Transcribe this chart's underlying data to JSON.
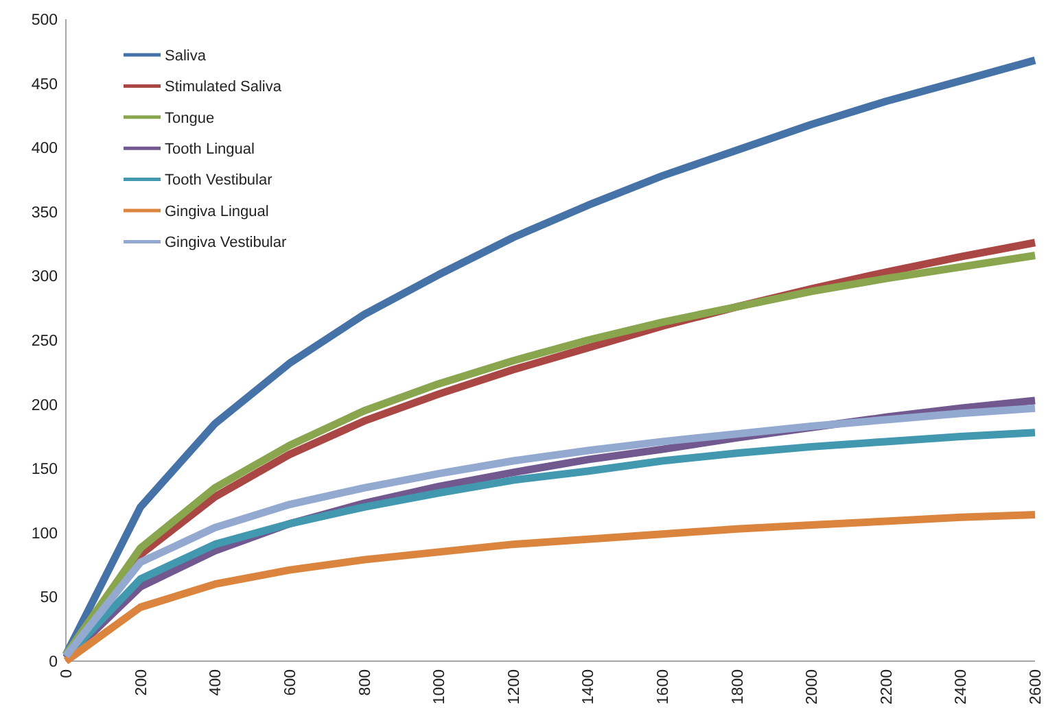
{
  "chart_data": {
    "type": "line",
    "x": [
      0,
      200,
      400,
      600,
      800,
      1000,
      1200,
      1400,
      1600,
      1800,
      2000,
      2200,
      2400,
      2600
    ],
    "xlim": [
      0,
      2600
    ],
    "xticks": [
      0,
      200,
      400,
      600,
      800,
      1000,
      1200,
      1400,
      1600,
      1800,
      2000,
      2200,
      2400,
      2600
    ],
    "ylim": [
      0,
      500
    ],
    "yticks": [
      0,
      50,
      100,
      150,
      200,
      250,
      300,
      350,
      400,
      450,
      500
    ],
    "grid": false,
    "legend": "top left",
    "marker": "none",
    "line_style": "solid",
    "series": [
      {
        "name": "Saliva",
        "color": "#4572a7",
        "values": [
          5,
          120,
          185,
          232,
          270,
          301,
          330,
          355,
          378,
          398,
          418,
          436,
          452,
          468
        ]
      },
      {
        "name": "Stimulated Saliva",
        "color": "#aa4643",
        "values": [
          3,
          83,
          128,
          161,
          187,
          208,
          227,
          244,
          261,
          276,
          290,
          303,
          315,
          326
        ]
      },
      {
        "name": "Tongue",
        "color": "#89a54e",
        "values": [
          5,
          88,
          135,
          168,
          195,
          216,
          234,
          250,
          264,
          276,
          288,
          298,
          307,
          316
        ]
      },
      {
        "name": "Tooth Lingual",
        "color": "#71588f",
        "values": [
          2,
          58,
          86,
          107,
          123,
          136,
          147,
          157,
          165,
          174,
          182,
          190,
          197,
          203
        ]
      },
      {
        "name": "Tooth Vestibular",
        "color": "#4198af",
        "values": [
          3,
          64,
          91,
          107,
          120,
          131,
          141,
          148,
          156,
          162,
          167,
          171,
          175,
          178
        ]
      },
      {
        "name": "Gingiva Lingual",
        "color": "#db843d",
        "values": [
          0,
          42,
          60,
          71,
          79,
          85,
          91,
          95,
          99,
          103,
          106,
          109,
          112,
          114
        ]
      },
      {
        "name": "Gingiva Vestibular",
        "color": "#93a9cf",
        "values": [
          4,
          77,
          104,
          122,
          135,
          146,
          156,
          164,
          171,
          177,
          183,
          188,
          193,
          197
        ]
      }
    ]
  }
}
